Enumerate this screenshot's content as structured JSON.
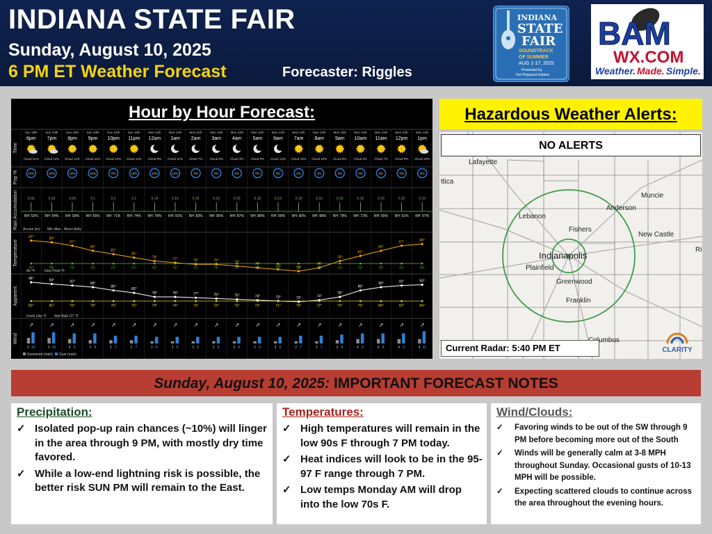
{
  "header": {
    "title": "INDIANA STATE FAIR",
    "date": "Sunday, August 10, 2025",
    "forecast_time": "6 PM ET Weather Forecast",
    "forecaster": "Forecaster: Riggles",
    "fair_logo": [
      "INDIANA",
      "STATE",
      "FAIR",
      "SOUNDTRACK",
      "OF SUMMER",
      "AUG 1-17, 2025",
      "Presented by",
      "Get Prepared Indiana"
    ],
    "bam_logo": {
      "top": "BAM",
      "url": "WX.COM",
      "tagline_1": "Weather.",
      "tagline_2": "Made.",
      "tagline_3": "Simple."
    }
  },
  "hourly": {
    "title": "Hour by Hour Forecast:",
    "row_labels": [
      "Time",
      "Pop %",
      "Rain Accumulation",
      "Temperature",
      "Apparent",
      "Wind"
    ],
    "hours": [
      {
        "day": "Sun 10th",
        "time": "6pm",
        "icon": "sun-cloud-icon",
        "cloud": "Cloud 21%",
        "pop": "10%",
        "rain": "0.02",
        "rh": "RH: 52%",
        "temp": "90°",
        "dew": "70°",
        "feels": "96°",
        "wetbulb": "83°",
        "sust": "5",
        "gust": "10"
      },
      {
        "day": "Sun 10th",
        "time": "7pm",
        "icon": "sun-cloud-icon",
        "cloud": "Cloud 12%",
        "pop": "10%",
        "rain": "0.03",
        "rh": "RH: 54%",
        "temp": "89°",
        "dew": "70°",
        "feels": "94°",
        "wetbulb": "81°",
        "sust": "5",
        "gust": "10"
      },
      {
        "day": "Sun 10th",
        "time": "8pm",
        "icon": "sun-icon",
        "cloud": "Cloud 12%",
        "pop": "10%",
        "rain": "0.09",
        "rh": "RH: 59%",
        "temp": "87°",
        "dew": "71°",
        "feels": "92°",
        "wetbulb": "79°",
        "sust": "4",
        "gust": "9"
      },
      {
        "day": "Sun 10th",
        "time": "9pm",
        "icon": "sun-icon",
        "cloud": "Cloud 11%",
        "pop": "10%",
        "rain": "0.1",
        "rh": "RH: 65%",
        "temp": "84°",
        "dew": "71°",
        "feels": "90°",
        "wetbulb": "79°",
        "sust": "3",
        "gust": "9"
      },
      {
        "day": "Sun 10th",
        "time": "10pm",
        "icon": "sun-icon",
        "cloud": "Cloud 10%",
        "pop": "0%",
        "rain": "0.1",
        "rh": "RH: 71%",
        "temp": "82°",
        "dew": "71°",
        "feels": "86°",
        "wetbulb": "76°",
        "sust": "3",
        "gust": "7"
      },
      {
        "day": "Sun 10th",
        "time": "11pm",
        "icon": "sun-icon",
        "cloud": "Cloud 13%",
        "pop": "10%",
        "rain": "0.1",
        "rh": "RH: 74%",
        "temp": "80°",
        "dew": "71°",
        "feels": "83°",
        "wetbulb": "76°",
        "sust": "3",
        "gust": "7"
      },
      {
        "day": "Mon 11th",
        "time": "12am",
        "icon": "moon-icon",
        "cloud": "Cloud 9%",
        "pop": "10%",
        "rain": "0.14",
        "rh": "RH: 78%",
        "temp": "78°",
        "dew": "71°",
        "feels": "78°",
        "wetbulb": "74°",
        "sust": "2",
        "gust": "6"
      },
      {
        "day": "Mon 11th",
        "time": "1am",
        "icon": "moon-icon",
        "cloud": "Cloud 11%",
        "pop": "10%",
        "rain": "0.15",
        "rh": "RH: 81%",
        "temp": "77°",
        "dew": "71°",
        "feels": "78°",
        "wetbulb": "74°",
        "sust": "2",
        "gust": "6"
      },
      {
        "day": "Mon 11th",
        "time": "2am",
        "icon": "moon-icon",
        "cloud": "Cloud 7%",
        "pop": "0%",
        "rain": "0.15",
        "rh": "RH: 83%",
        "temp": "76°",
        "dew": "71°",
        "feels": "77°",
        "wetbulb": "73°",
        "sust": "2",
        "gust": "6"
      },
      {
        "day": "Mon 11th",
        "time": "3am",
        "icon": "moon-icon",
        "cloud": "Cloud 6%",
        "pop": "0%",
        "rain": "0.15",
        "rh": "RH: 85%",
        "temp": "76°",
        "dew": "71°",
        "feels": "76°",
        "wetbulb": "73°",
        "sust": "2",
        "gust": "6"
      },
      {
        "day": "Mon 11th",
        "time": "4am",
        "icon": "moon-icon",
        "cloud": "Cloud 3%",
        "pop": "0%",
        "rain": "0.15",
        "rh": "RH: 87%",
        "temp": "75°",
        "dew": "71°",
        "feels": "75°",
        "wetbulb": "73°",
        "sust": "2",
        "gust": "6"
      },
      {
        "day": "Mon 11th",
        "time": "5am",
        "icon": "moon-icon",
        "cloud": "Cloud 9%",
        "pop": "0%",
        "rain": "0.15",
        "rh": "RH: 88%",
        "temp": "74°",
        "dew": "70°",
        "feels": "74°",
        "wetbulb": "72°",
        "sust": "2",
        "gust": "6"
      },
      {
        "day": "Mon 11th",
        "time": "6am",
        "icon": "moon-icon",
        "cloud": "Cloud 14%",
        "pop": "0%",
        "rain": "0.15",
        "rh": "RH: 90%",
        "temp": "73°",
        "dew": "70°",
        "feels": "73°",
        "wetbulb": "71°",
        "sust": "2",
        "gust": "6"
      },
      {
        "day": "Mon 11th",
        "time": "7am",
        "icon": "sun-icon",
        "cloud": "Cloud 15%",
        "pop": "0%",
        "rain": "0.15",
        "rh": "RH: 90%",
        "temp": "72°",
        "dew": "70°",
        "feels": "72°",
        "wetbulb": "70°",
        "sust": "2",
        "gust": "7"
      },
      {
        "day": "Mon 11th",
        "time": "8am",
        "icon": "sun-icon",
        "cloud": "Cloud 10%",
        "pop": "0%",
        "rain": "0.15",
        "rh": "RH: 88%",
        "temp": "74°",
        "dew": "70°",
        "feels": "74°",
        "wetbulb": "72°",
        "sust": "2",
        "gust": "7"
      },
      {
        "day": "Mon 11th",
        "time": "9am",
        "icon": "sun-icon",
        "cloud": "Cloud 8%",
        "pop": "0%",
        "rain": "0.15",
        "rh": "RH: 79%",
        "temp": "78°",
        "dew": "71°",
        "feels": "78°",
        "wetbulb": "74°",
        "sust": "3",
        "gust": "8"
      },
      {
        "day": "Mon 11th",
        "time": "10am",
        "icon": "sun-icon",
        "cloud": "Cloud 6%",
        "pop": "0%",
        "rain": "0.15",
        "rh": "RH: 72%",
        "temp": "81°",
        "dew": "71°",
        "feels": "86°",
        "wetbulb": "79°",
        "sust": "4",
        "gust": "9"
      },
      {
        "day": "Mon 11th",
        "time": "11am",
        "icon": "sun-icon",
        "cloud": "Cloud 7%",
        "pop": "0%",
        "rain": "0.15",
        "rh": "RH: 65%",
        "temp": "84°",
        "dew": "72°",
        "feels": "90°",
        "wetbulb": "80°",
        "sust": "4",
        "gust": "9"
      },
      {
        "day": "Mon 11th",
        "time": "12pm",
        "icon": "sun-icon",
        "cloud": "Cloud 8%",
        "pop": "0%",
        "rain": "0.15",
        "rh": "RH: 61%",
        "temp": "87°",
        "dew": "71°",
        "feels": "92°",
        "wetbulb": "82°",
        "sust": "4",
        "gust": "9"
      },
      {
        "day": "Mon 11th",
        "time": "1pm",
        "icon": "sun-cloud-icon",
        "cloud": "Cloud 20%",
        "pop": "0%",
        "rain": "0.15",
        "rh": "RH: 57%",
        "temp": "88°",
        "dew": "70°",
        "feels": "93°",
        "wetbulb": "84°",
        "sust": "4",
        "gust": "11"
      }
    ],
    "accum_legend": "Accum (in):",
    "accum_min": "Min",
    "accum_mid": "Max:",
    "accum_max": "Most Likely",
    "temp_legend": [
      "Air °F",
      "Dew Point °F"
    ],
    "apparent_legend": [
      "Feels Like °F",
      "Wet Bulb GT °F"
    ],
    "wind_legend": [
      "Sustained (mph)",
      "Gust (mph)"
    ],
    "colors": {
      "temp": "#f5a70d",
      "dew": "#6db33f",
      "feels": "#ffffff",
      "wetbulb": "#e8d63a",
      "sustained": "#8c8c8c",
      "gust": "#2f7fd6",
      "pop": "#2f7fd6"
    }
  },
  "alerts": {
    "title": "Hazardous Weather Alerts:",
    "status": "NO ALERTS",
    "radar_caption": "Current Radar: 5:40 PM ET",
    "map_labels": [
      "Lafayette",
      "ttica",
      "Lebanon",
      "Anderson",
      "Muncie",
      "Fishers",
      "New Castle",
      "Indianapolis",
      "Plainfield",
      "Greenwood",
      "Franklin",
      "Columbus",
      "Ri"
    ],
    "clarity_logo": "CLARITY"
  },
  "notes": {
    "banner_date": "Sunday, August 10, 2025:",
    "banner_text": "IMPORTANT FORECAST NOTES",
    "check": "✓",
    "precipitation": {
      "title": "Precipitation:",
      "items": [
        "Isolated pop-up rain chances (~10%) will linger in the area through 9 PM, with mostly dry time favored.",
        "While a low-end lightning risk is possible, the better risk SUN PM will remain to the East."
      ]
    },
    "temperatures": {
      "title": "Temperatures:",
      "items": [
        "High temperatures will remain in the low 90s F through 7 PM today.",
        "Heat indices will look to be in the 95-97 F range through 7 PM.",
        "Low temps Monday AM will drop into the low 70s F."
      ]
    },
    "wind": {
      "title": "Wind/Clouds:",
      "items": [
        "Favoring winds to be out of the SW through 9 PM before becoming more out of the South",
        "Winds will be generally calm at 3-8 MPH throughout Sunday. Occasional gusts of 10-13 MPH will be possible.",
        "Expecting scattered clouds to continue across the area throughout the evening hours."
      ]
    }
  }
}
